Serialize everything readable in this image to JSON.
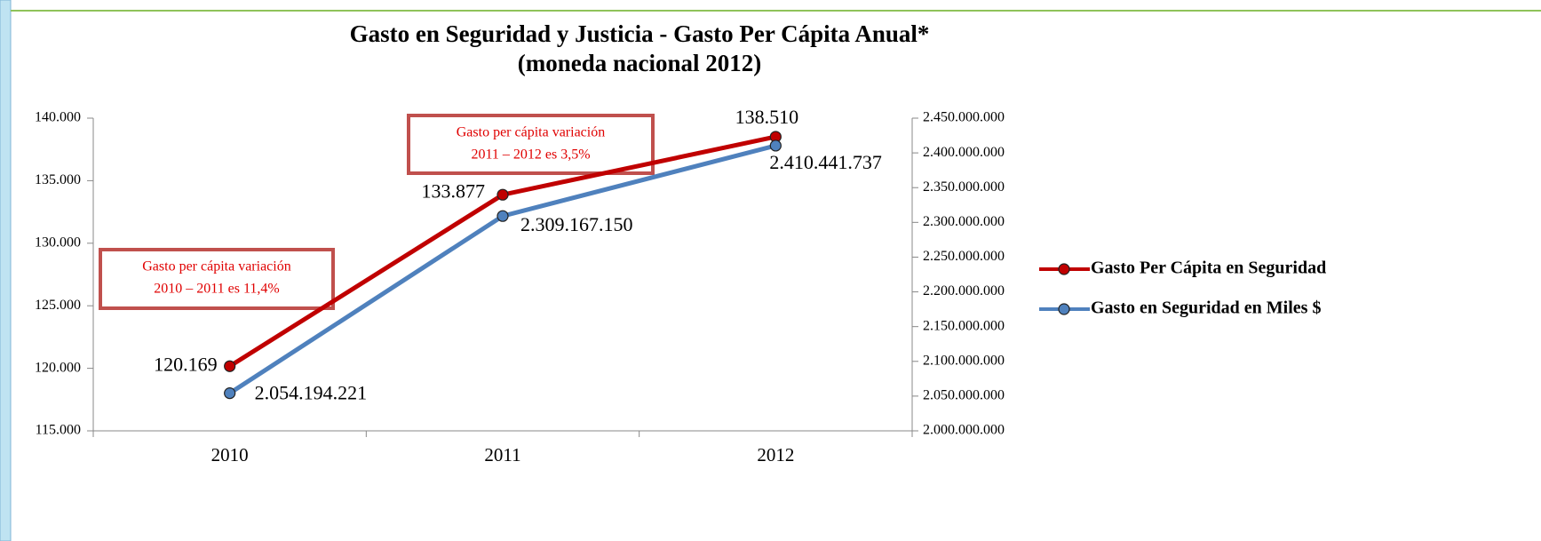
{
  "chart_data": {
    "type": "line",
    "title": "Gasto en Seguridad y Justicia - Gasto Per Cápita Anual*",
    "subtitle": "(moneda nacional 2012)",
    "categories": [
      "2010",
      "2011",
      "2012"
    ],
    "series": [
      {
        "name": "Gasto Per Cápita en Seguridad",
        "color": "#c00000",
        "values": [
          120169,
          133877,
          138510
        ],
        "value_labels": [
          "120.169",
          "133.877",
          "138.510"
        ]
      },
      {
        "name": "Gasto en Seguridad en Miles $",
        "color": "#4f81bd",
        "axis": "y2",
        "values": [
          2054194221,
          2309167150,
          2410441737
        ],
        "value_labels": [
          "2.054.194.221",
          "2.309.167.150",
          "2.410.441.737"
        ]
      }
    ],
    "ylim": [
      115000,
      140000
    ],
    "yticks": [
      {
        "value": 115000,
        "label": "115.000"
      },
      {
        "value": 120000,
        "label": "120.000"
      },
      {
        "value": 125000,
        "label": "125.000"
      },
      {
        "value": 130000,
        "label": "130.000"
      },
      {
        "value": 135000,
        "label": "135.000"
      },
      {
        "value": 140000,
        "label": "140.000"
      }
    ],
    "y2lim": [
      2000000000,
      2450000000
    ],
    "y2ticks": [
      {
        "value": 2000000000,
        "label": "2.000.000.000"
      },
      {
        "value": 2050000000,
        "label": "2.050.000.000"
      },
      {
        "value": 2100000000,
        "label": "2.100.000.000"
      },
      {
        "value": 2150000000,
        "label": "2.150.000.000"
      },
      {
        "value": 2200000000,
        "label": "2.200.000.000"
      },
      {
        "value": 2250000000,
        "label": "2.250.000.000"
      },
      {
        "value": 2300000000,
        "label": "2.300.000.000"
      },
      {
        "value": 2350000000,
        "label": "2.350.000.000"
      },
      {
        "value": 2400000000,
        "label": "2.400.000.000"
      },
      {
        "value": 2450000000,
        "label": "2.450.000.000"
      }
    ],
    "annotations": [
      {
        "lines": [
          "Gasto per cápita variación",
          "2010 – 2011 es 11,4%"
        ]
      },
      {
        "lines": [
          "Gasto per cápita variación",
          "2011 – 2012 es 3,5%"
        ]
      }
    ],
    "legend": "right"
  }
}
